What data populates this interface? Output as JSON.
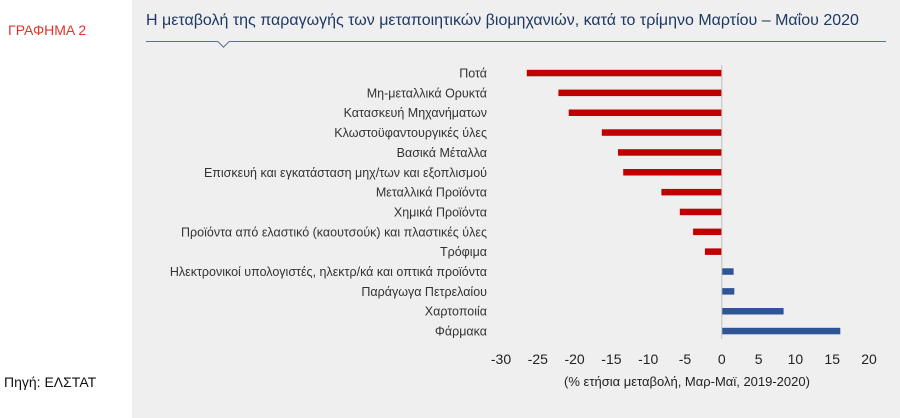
{
  "sidebar": {
    "graph_label": "ΓΡΑΦΗΜΑ 2",
    "source": "Πηγή: ΕΛΣΤΑΤ"
  },
  "colors": {
    "negative": "#c00000",
    "positive": "#2f5597",
    "title": "#1f3864",
    "graph_label": "#e0352b"
  },
  "chart_data": {
    "type": "bar",
    "orientation": "horizontal",
    "title": "Η μεταβολή της παραγωγής των μεταποιητικών βιομηχανιών, κατά το τρίμηνο Μαρτίου – Μαΐου 2020",
    "xlabel": "(% ετήσια μεταβολή, Μαρ-Μαϊ, 2019-2020)",
    "ylabel": "",
    "xlim": [
      -30,
      20
    ],
    "xticks": [
      -30,
      -25,
      -20,
      -15,
      -10,
      -5,
      0,
      5,
      10,
      15,
      20
    ],
    "grid": false,
    "legend": "none",
    "categories": [
      "Ποτά",
      "Μη-μεταλλικά Ορυκτά",
      "Κατασκευή Μηχανήματων",
      "Κλωστοϋφαντουργικές ύλες",
      "Βασικά Μέταλλα",
      "Επισκευή και εγκατάσταση μηχ/των και εξοπλισμού",
      "Μεταλλικά Προϊόντα",
      "Χημικά Προϊόντα",
      "Προϊόντα από ελαστικό (καουτσούκ) και πλαστικές ύλες",
      "Τρόφιμα",
      "Ηλεκτρονικοί υπολογιστές, ηλεκτρ/κά και οπτικά προϊόντα",
      "Παράγωγα Πετρελαίου",
      "Χαρτοποιία",
      "Φάρμακα"
    ],
    "values": [
      -26.5,
      -22.2,
      -20.8,
      -16.3,
      -14.1,
      -13.4,
      -8.2,
      -5.7,
      -3.9,
      -2.3,
      1.6,
      1.7,
      8.4,
      16.1
    ]
  }
}
